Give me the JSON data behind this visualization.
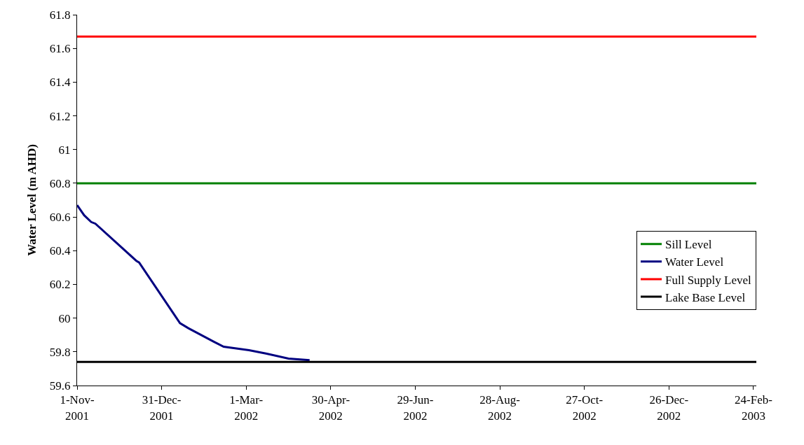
{
  "chart_data": {
    "type": "line",
    "ylabel": "Water Level (m AHD)",
    "xlim": [
      "2001-11-01",
      "2003-02-26"
    ],
    "xticks": [
      {
        "value": "2001-11-01",
        "label": "1-Nov-\n2001"
      },
      {
        "value": "2001-12-31",
        "label": "31-Dec-\n2001"
      },
      {
        "value": "2002-03-01",
        "label": "1-Mar-\n2002"
      },
      {
        "value": "2002-04-30",
        "label": "30-Apr-\n2002"
      },
      {
        "value": "2002-06-29",
        "label": "29-Jun-\n2002"
      },
      {
        "value": "2002-08-28",
        "label": "28-Aug-\n2002"
      },
      {
        "value": "2002-10-27",
        "label": "27-Oct-\n2002"
      },
      {
        "value": "2002-12-26",
        "label": "26-Dec-\n2002"
      },
      {
        "value": "2003-02-24",
        "label": "24-Feb-\n2003"
      }
    ],
    "ylim": [
      59.6,
      61.8
    ],
    "yticks": [
      59.6,
      59.8,
      60,
      60.2,
      60.4,
      60.6,
      60.8,
      61,
      61.2,
      61.4,
      61.6,
      61.8
    ],
    "grid": false,
    "legend": "right",
    "marker": "none",
    "line_style": "solid",
    "series": [
      {
        "name": "Sill Level",
        "color": "#008000",
        "x": [
          "2001-11-01",
          "2003-02-26"
        ],
        "values": [
          60.8,
          60.8
        ]
      },
      {
        "name": "Water Level",
        "color": "#000080",
        "x": [
          "2001-11-01",
          "2001-11-06",
          "2001-11-11",
          "2001-11-14",
          "2001-12-13",
          "2001-12-15",
          "2002-01-13",
          "2002-01-19",
          "2002-02-06",
          "2002-02-13",
          "2002-03-03",
          "2002-03-15",
          "2002-03-31",
          "2002-04-15"
        ],
        "values": [
          60.67,
          60.61,
          60.57,
          60.56,
          60.34,
          60.33,
          59.97,
          59.94,
          59.86,
          59.83,
          59.81,
          59.79,
          59.76,
          59.75
        ]
      },
      {
        "name": "Full Supply Level",
        "color": "#ff0000",
        "x": [
          "2001-11-01",
          "2003-02-26"
        ],
        "values": [
          61.67,
          61.67
        ]
      },
      {
        "name": "Lake Base Level",
        "color": "#000000",
        "x": [
          "2001-11-01",
          "2003-02-26"
        ],
        "values": [
          59.74,
          59.74
        ]
      }
    ]
  }
}
